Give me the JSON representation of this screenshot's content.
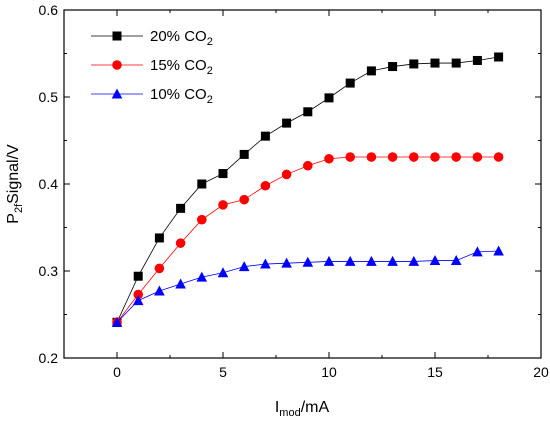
{
  "chart_data": {
    "type": "line",
    "xlabel": {
      "main": "I",
      "sub": "mod",
      "rest": "/mA"
    },
    "ylabel": {
      "main": "P",
      "sub": "2f",
      "rest": "Signal/V"
    },
    "xlim": [
      -2.5,
      20
    ],
    "ylim": [
      0.2,
      0.6
    ],
    "xticks": [
      0,
      5,
      10,
      15,
      20
    ],
    "yticks": [
      0.2,
      0.3,
      0.4,
      0.5,
      0.6
    ],
    "xtick_labels": [
      "0",
      "5",
      "10",
      "15",
      "20"
    ],
    "ytick_labels": [
      "0.2",
      "0.3",
      "0.4",
      "0.5",
      "0.6"
    ],
    "grid": false,
    "legend_position": "top-left",
    "x": [
      0,
      1,
      2,
      3,
      4,
      5,
      6,
      7,
      8,
      9,
      10,
      11,
      12,
      13,
      14,
      15,
      16,
      17,
      18
    ],
    "series": [
      {
        "label_main": "20% CO",
        "label_sub": "2",
        "marker": "square",
        "color": "#000000",
        "values": [
          0.241,
          0.294,
          0.338,
          0.372,
          0.4,
          0.412,
          0.434,
          0.455,
          0.47,
          0.483,
          0.499,
          0.516,
          0.53,
          0.535,
          0.538,
          0.539,
          0.539,
          0.542,
          0.546
        ]
      },
      {
        "label_main": "15% CO",
        "label_sub": "2",
        "marker": "circle",
        "color": "#ff0000",
        "values": [
          0.241,
          0.273,
          0.303,
          0.332,
          0.359,
          0.376,
          0.382,
          0.398,
          0.411,
          0.421,
          0.429,
          0.431,
          0.431,
          0.431,
          0.431,
          0.431,
          0.431,
          0.431,
          0.431
        ]
      },
      {
        "label_main": "10% CO",
        "label_sub": "2",
        "marker": "triangle",
        "color": "#0000ff",
        "values": [
          0.241,
          0.266,
          0.277,
          0.285,
          0.293,
          0.298,
          0.305,
          0.308,
          0.309,
          0.31,
          0.311,
          0.311,
          0.311,
          0.311,
          0.311,
          0.312,
          0.312,
          0.322,
          0.323
        ]
      }
    ]
  }
}
